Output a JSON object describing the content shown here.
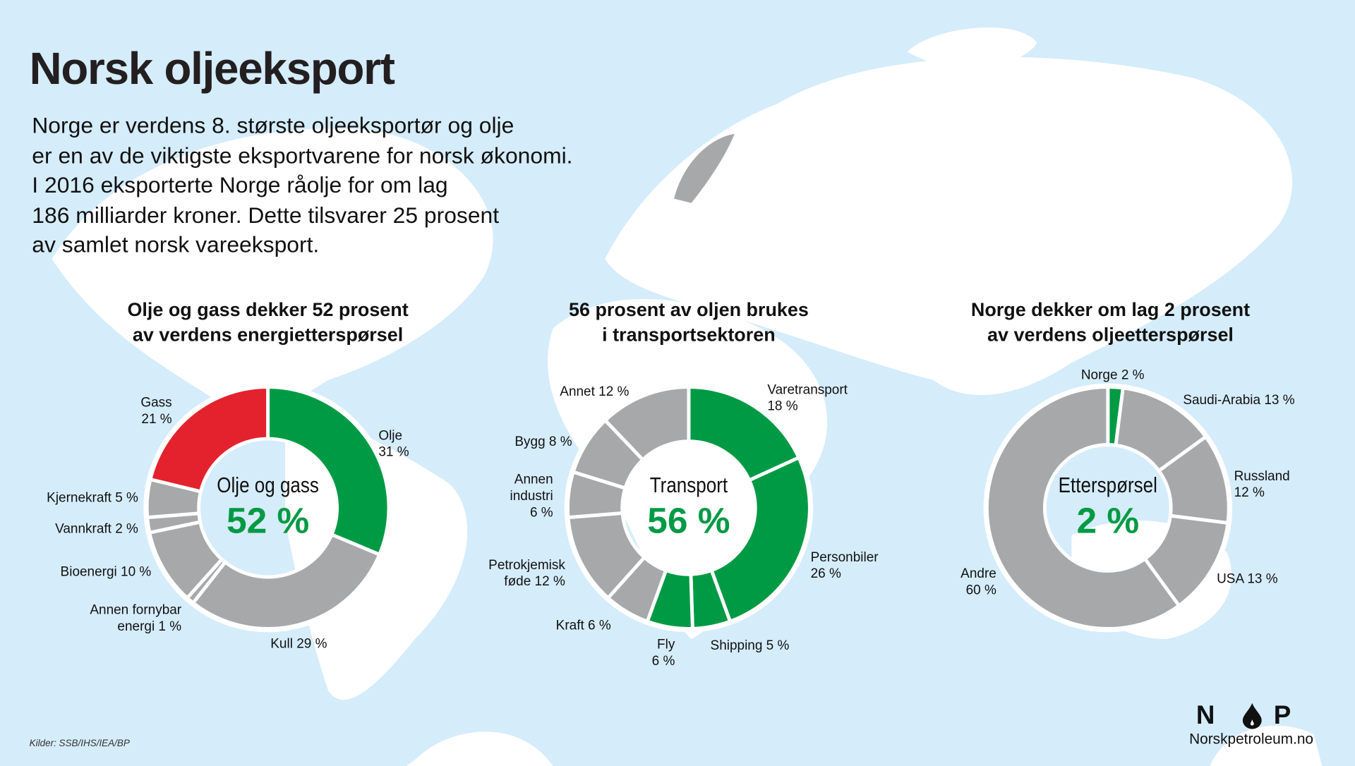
{
  "title": "Norsk oljeeksport",
  "intro": [
    "Norge er verdens 8. største oljeeksportør og olje",
    "er en av de viktigste eksportvarene for norsk økonomi.",
    "I 2016 eksporterte Norge råolje for om lag",
    "186 milliarder kroner. Dette tilsvarer 25 prosent",
    "av samlet norsk vareeksport."
  ],
  "colors": {
    "green": "#009a44",
    "red": "#e4222e",
    "gray": "#a7a8aa",
    "sea": "#d5ecfa"
  },
  "chart_data": [
    {
      "type": "pie",
      "title": [
        "Olje og gass dekker 52 prosent",
        "av verdens energietterspørsel"
      ],
      "center_label": "Olje og gass",
      "center_value": "52 %",
      "slices": [
        {
          "name": "Olje",
          "value": 31,
          "color": "green",
          "label": [
            "Olje",
            "31 %"
          ]
        },
        {
          "name": "Kull",
          "value": 29,
          "color": "gray",
          "label": [
            "Kull 29 %"
          ]
        },
        {
          "name": "Annen fornybar energi",
          "value": 1,
          "color": "gray",
          "label": [
            "Annen fornybar",
            "energi 1 %"
          ]
        },
        {
          "name": "Bioenergi",
          "value": 10,
          "color": "gray",
          "label": [
            "Bioenergi 10 %"
          ]
        },
        {
          "name": "Vannkraft",
          "value": 2,
          "color": "gray",
          "label": [
            "Vannkraft 2 %"
          ]
        },
        {
          "name": "Kjernekraft",
          "value": 5,
          "color": "gray",
          "label": [
            "Kjernekraft 5 %"
          ]
        },
        {
          "name": "Gass",
          "value": 21,
          "color": "red",
          "label": [
            "Gass",
            "21 %"
          ]
        }
      ]
    },
    {
      "type": "pie",
      "title": [
        "56 prosent av oljen brukes",
        "i transportsektoren"
      ],
      "center_label": "Transport",
      "center_value": "56 %",
      "slices": [
        {
          "name": "Varetransport",
          "value": 18,
          "color": "green",
          "label": [
            "Varetransport",
            "18 %"
          ]
        },
        {
          "name": "Personbiler",
          "value": 26,
          "color": "green",
          "label": [
            "Personbiler",
            "26 %"
          ]
        },
        {
          "name": "Shipping",
          "value": 5,
          "color": "green",
          "label": [
            "Shipping 5 %"
          ]
        },
        {
          "name": "Fly",
          "value": 6,
          "color": "green",
          "label": [
            "Fly",
            "6 %"
          ]
        },
        {
          "name": "Kraft",
          "value": 6,
          "color": "gray",
          "label": [
            "Kraft 6 %"
          ]
        },
        {
          "name": "Petrokjemisk føde",
          "value": 12,
          "color": "gray",
          "label": [
            "Petrokjemisk",
            "føde 12 %"
          ]
        },
        {
          "name": "Annen industri",
          "value": 6,
          "color": "gray",
          "label": [
            "Annen",
            "industri",
            "6 %"
          ]
        },
        {
          "name": "Bygg",
          "value": 8,
          "color": "gray",
          "label": [
            "Bygg 8 %"
          ]
        },
        {
          "name": "Annet",
          "value": 12,
          "color": "gray",
          "label": [
            "Annet 12 %"
          ]
        }
      ]
    },
    {
      "type": "pie",
      "title": [
        "Norge dekker om lag 2 prosent",
        "av verdens oljeetterspørsel"
      ],
      "center_label": "Etterspørsel",
      "center_value": "2 %",
      "slices": [
        {
          "name": "Norge",
          "value": 2,
          "color": "green",
          "label": [
            "Norge 2 %"
          ]
        },
        {
          "name": "Saudi-Arabia",
          "value": 13,
          "color": "gray",
          "label": [
            "Saudi-Arabia 13 %"
          ]
        },
        {
          "name": "Russland",
          "value": 12,
          "color": "gray",
          "label": [
            "Russland",
            "12 %"
          ]
        },
        {
          "name": "USA",
          "value": 13,
          "color": "gray",
          "label": [
            "USA 13 %"
          ]
        },
        {
          "name": "Andre",
          "value": 60,
          "color": "gray",
          "label": [
            "Andre",
            "60 %"
          ]
        }
      ]
    }
  ],
  "source": "Kilder: SSB/IHS/IEA/BP",
  "logo": {
    "letters": [
      "N",
      "P"
    ],
    "url": "Norskpetroleum.no"
  }
}
